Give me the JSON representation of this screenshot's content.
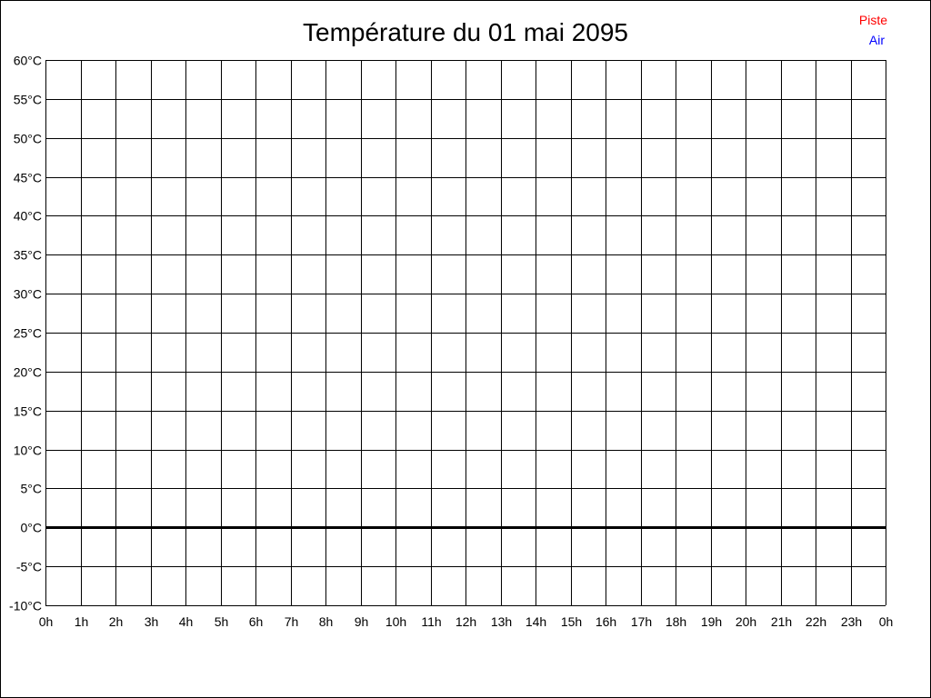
{
  "chart_data": {
    "type": "line",
    "title": "Température du 01 mai 2095",
    "xlabel": "",
    "ylabel": "",
    "x_ticks": [
      "0h",
      "1h",
      "2h",
      "3h",
      "4h",
      "5h",
      "6h",
      "7h",
      "8h",
      "9h",
      "10h",
      "11h",
      "12h",
      "13h",
      "14h",
      "15h",
      "16h",
      "17h",
      "18h",
      "19h",
      "20h",
      "21h",
      "22h",
      "23h",
      "0h"
    ],
    "y_ticks": [
      "60°C",
      "55°C",
      "50°C",
      "45°C",
      "40°C",
      "35°C",
      "30°C",
      "25°C",
      "20°C",
      "15°C",
      "10°C",
      "5°C",
      "0°C",
      "-5°C",
      "-10°C"
    ],
    "ylim": [
      -10,
      60
    ],
    "xlim": [
      0,
      24
    ],
    "grid": true,
    "legend_position": "top-right",
    "series": [
      {
        "name": "Piste",
        "color": "#ff0000",
        "values": []
      },
      {
        "name": "Air",
        "color": "#0000ff",
        "values": []
      }
    ]
  }
}
